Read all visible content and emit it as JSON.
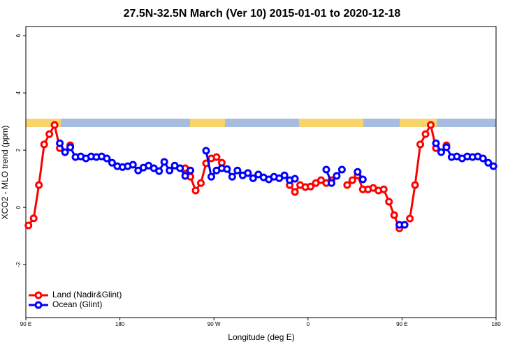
{
  "chart_data": {
    "type": "line",
    "title": "27.5N-32.5N March (Ver 10)   2015-01-01 to 2020-12-18",
    "x_label": "Longitude (deg E)",
    "y_label": "XCO2 - MLO trend (ppm)",
    "x": [
      92.5,
      97.5,
      102.5,
      107.5,
      112.5,
      117.5,
      122.5,
      127.5,
      132.5,
      137.5,
      142.5,
      147.5,
      152.5,
      157.5,
      162.5,
      167.5,
      172.5,
      177.5,
      182.5,
      187.5,
      192.5,
      197.5,
      202.5,
      207.5,
      212.5,
      217.5,
      222.5,
      227.5,
      232.5,
      237.5,
      242.5,
      247.5,
      252.5,
      257.5,
      262.5,
      267.5,
      272.5,
      277.5,
      282.5,
      287.5,
      292.5,
      297.5,
      302.5,
      307.5,
      312.5,
      317.5,
      322.5,
      327.5,
      332.5,
      337.5,
      342.5,
      347.5,
      352.5,
      357.5,
      362.5,
      367.5,
      372.5,
      377.5,
      382.5,
      387.5,
      392.5,
      397.5,
      402.5,
      407.5,
      412.5,
      417.5,
      422.5,
      427.5,
      432.5,
      437.5,
      442.5,
      447.5,
      452.5,
      457.5,
      462.5,
      467.5,
      472.5,
      477.5,
      482.5,
      487.5,
      492.5,
      497.5,
      502.5,
      507.5,
      512.5,
      517.5,
      522.5,
      527.5,
      532.5,
      537.5
    ],
    "series": [
      {
        "name": "Land (Nadir&Glint)",
        "color": "#ff0000",
        "values": [
          -0.63,
          -0.38,
          0.78,
          2.2,
          2.56,
          2.88,
          2.07,
          null,
          2.17,
          null,
          null,
          null,
          null,
          null,
          null,
          null,
          null,
          null,
          null,
          null,
          null,
          null,
          null,
          null,
          null,
          null,
          null,
          null,
          null,
          null,
          1.37,
          1.07,
          0.59,
          0.85,
          1.54,
          1.71,
          1.76,
          1.56,
          null,
          null,
          null,
          null,
          null,
          null,
          null,
          null,
          null,
          null,
          null,
          null,
          0.78,
          0.54,
          0.78,
          0.71,
          0.73,
          0.85,
          0.95,
          0.85,
          0.95,
          null,
          null,
          0.78,
          0.95,
          1.12,
          0.63,
          0.63,
          0.68,
          0.59,
          0.63,
          0.2,
          -0.27,
          -0.73,
          null,
          -0.39,
          0.78,
          2.2,
          2.56,
          2.88,
          2.07,
          null,
          2.17,
          null,
          null,
          null,
          null,
          null,
          null,
          null,
          null,
          null
        ]
      },
      {
        "name": "Ocean (Glint)",
        "color": "#0000ff",
        "values": [
          null,
          null,
          null,
          null,
          null,
          null,
          2.24,
          1.93,
          2.1,
          1.76,
          1.78,
          1.71,
          1.78,
          1.76,
          1.78,
          1.71,
          1.56,
          1.44,
          1.41,
          1.44,
          1.49,
          1.29,
          1.39,
          1.46,
          1.37,
          1.27,
          1.59,
          1.29,
          1.46,
          1.37,
          1.1,
          1.29,
          null,
          null,
          1.98,
          1.07,
          1.29,
          1.37,
          1.34,
          1.07,
          1.29,
          1.12,
          1.2,
          1.02,
          1.15,
          1.05,
          0.98,
          1.07,
          1.02,
          1.12,
          0.95,
          1.0,
          null,
          null,
          null,
          null,
          null,
          1.32,
          0.85,
          1.1,
          1.32,
          null,
          null,
          1.24,
          0.98,
          null,
          null,
          null,
          null,
          null,
          null,
          -0.61,
          -0.61,
          null,
          null,
          null,
          null,
          null,
          2.24,
          1.93,
          2.1,
          1.76,
          1.78,
          1.71,
          1.78,
          1.76,
          1.78,
          1.71,
          1.56,
          1.44
        ]
      }
    ],
    "xlim": [
      90,
      540
    ],
    "xticks": [
      {
        "value": 90,
        "label": "90 E"
      },
      {
        "value": 180,
        "label": "180"
      },
      {
        "value": 270,
        "label": "90 W"
      },
      {
        "value": 360,
        "label": "0"
      },
      {
        "value": 450,
        "label": "90 E"
      },
      {
        "value": 540,
        "label": "180"
      }
    ],
    "ylim": [
      -3.85,
      6.32
    ],
    "yticks": [
      -2,
      0,
      2,
      4,
      6
    ],
    "legend": "bottom-left"
  }
}
